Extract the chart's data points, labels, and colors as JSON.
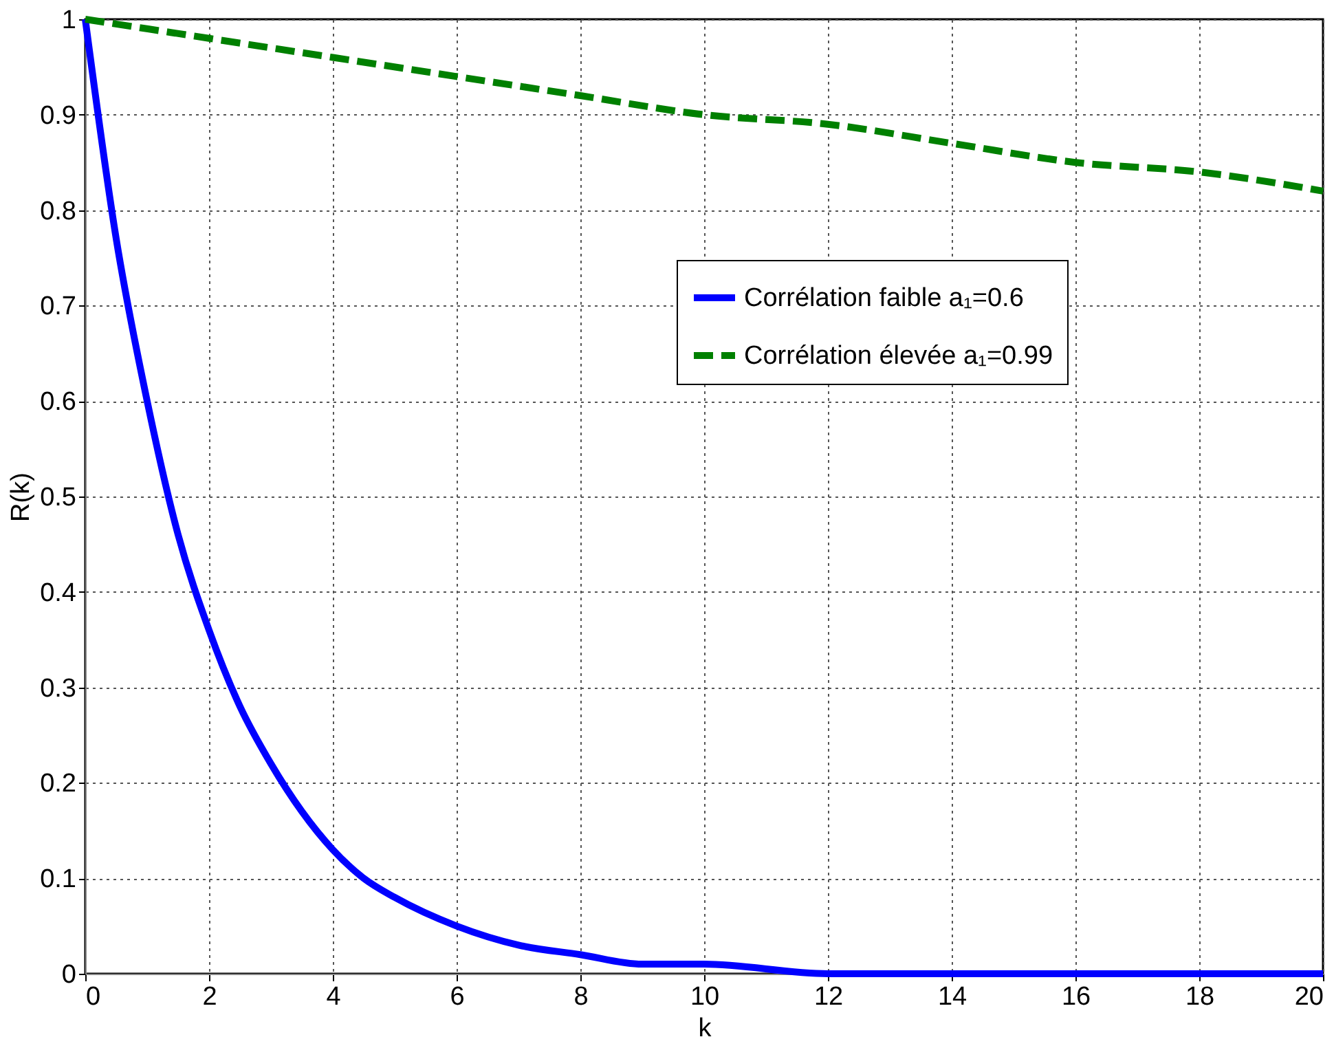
{
  "chart_data": {
    "type": "line",
    "xlabel": "k",
    "ylabel": "R(k)",
    "xlim": [
      0,
      20
    ],
    "ylim": [
      0,
      1
    ],
    "xticks": [
      0,
      2,
      4,
      6,
      8,
      10,
      12,
      14,
      16,
      18,
      20
    ],
    "yticks": [
      0,
      0.1,
      0.2,
      0.3,
      0.4,
      0.5,
      0.6,
      0.7,
      0.8,
      0.9,
      1
    ],
    "grid": true,
    "legend": "right",
    "marker": "none",
    "series": [
      {
        "name": "Corrélation faible a₁=0.6",
        "color": "#0000ff",
        "line_style": "solid",
        "x": [
          0,
          0.5,
          1,
          1.5,
          2,
          2.5,
          3,
          3.5,
          4,
          4.5,
          5,
          6,
          7,
          8,
          9,
          10,
          12,
          14,
          16,
          18,
          20
        ],
        "values": [
          1,
          0.77,
          0.6,
          0.46,
          0.36,
          0.28,
          0.22,
          0.17,
          0.13,
          0.1,
          0.08,
          0.05,
          0.03,
          0.02,
          0.01,
          0.01,
          0,
          0,
          0,
          0,
          0
        ]
      },
      {
        "name": "Corrélation élevée a₁=0.99",
        "color": "#008000",
        "line_style": "dashed",
        "x": [
          0,
          2,
          4,
          6,
          8,
          10,
          12,
          14,
          16,
          18,
          20
        ],
        "values": [
          1,
          0.98,
          0.96,
          0.94,
          0.92,
          0.9,
          0.89,
          0.87,
          0.85,
          0.84,
          0.82
        ]
      }
    ]
  }
}
